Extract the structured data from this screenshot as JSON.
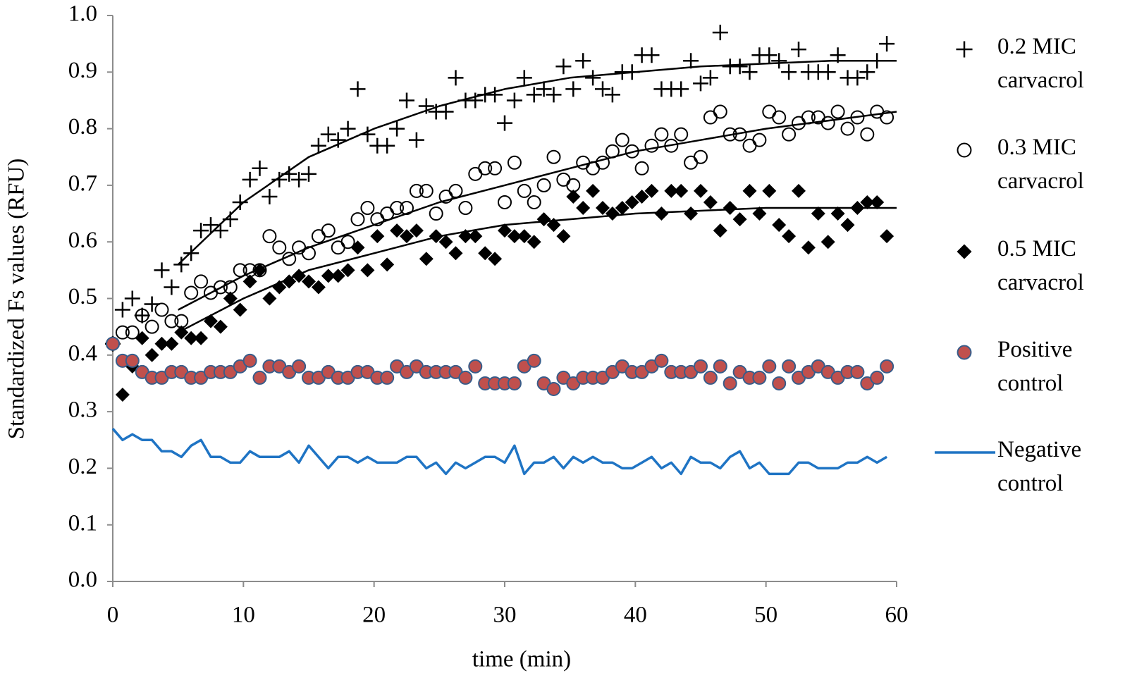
{
  "chart_data": {
    "type": "scatter",
    "xlabel": "time (min)",
    "ylabel": "Standardized Fs values (RFU)",
    "xlim": [
      0,
      60
    ],
    "ylim": [
      0,
      1
    ],
    "xticks": [
      0,
      10,
      20,
      30,
      40,
      50,
      60
    ],
    "yticks": [
      {
        "value": 0,
        "label": "0.0"
      },
      0.1,
      0.2,
      0.3,
      0.4,
      0.5,
      0.6,
      0.7,
      0.8,
      0.9,
      {
        "value": 1,
        "label": "1.0"
      }
    ],
    "legend": "right",
    "x": [
      0,
      0.75,
      1.5,
      2.25,
      3,
      3.75,
      4.5,
      5.25,
      6,
      6.75,
      7.5,
      8.25,
      9,
      9.75,
      10.5,
      11.25,
      12,
      12.75,
      13.5,
      14.25,
      15,
      15.75,
      16.5,
      17.25,
      18,
      18.75,
      19.5,
      20.25,
      21,
      21.75,
      22.5,
      23.25,
      24,
      24.75,
      25.5,
      26.25,
      27,
      27.75,
      28.5,
      29.25,
      30,
      30.75,
      31.5,
      32.25,
      33,
      33.75,
      34.5,
      35.25,
      36,
      36.75,
      37.5,
      38.25,
      39,
      39.75,
      40.5,
      41.25,
      42,
      42.75,
      43.5,
      44.25,
      45,
      45.75,
      46.5,
      47.25,
      48,
      48.75,
      49.5,
      50.25,
      51,
      51.75,
      52.5,
      53.25,
      54,
      54.75,
      55.5,
      56.25,
      57,
      57.75,
      58.5,
      59.25
    ],
    "series": [
      {
        "name": "0.2 MIC carvacrol",
        "marker": "plus",
        "color": "#000000",
        "values": [
          0.42,
          0.48,
          0.5,
          0.47,
          0.49,
          0.55,
          0.52,
          0.56,
          0.58,
          0.62,
          0.63,
          0.62,
          0.64,
          0.67,
          0.71,
          0.73,
          0.68,
          0.71,
          0.72,
          0.71,
          0.72,
          0.77,
          0.79,
          0.78,
          0.8,
          0.87,
          0.79,
          0.77,
          0.77,
          0.8,
          0.85,
          0.78,
          0.84,
          0.83,
          0.83,
          0.89,
          0.85,
          0.85,
          0.86,
          0.86,
          0.81,
          0.85,
          0.89,
          0.86,
          0.87,
          0.86,
          0.91,
          0.87,
          0.92,
          0.89,
          0.87,
          0.86,
          0.9,
          0.9,
          0.93,
          0.93,
          0.87,
          0.87,
          0.87,
          0.92,
          0.88,
          0.89,
          0.97,
          0.91,
          0.91,
          0.9,
          0.93,
          0.93,
          0.92,
          0.9,
          0.94,
          0.9,
          0.9,
          0.9,
          0.93,
          0.89,
          0.89,
          0.9,
          0.92,
          0.95
        ]
      },
      {
        "name": "0.3 MIC carvacrol",
        "marker": "open-circle",
        "color": "#000000",
        "values": [
          0.42,
          0.44,
          0.44,
          0.47,
          0.45,
          0.48,
          0.46,
          0.46,
          0.51,
          0.53,
          0.51,
          0.52,
          0.52,
          0.55,
          0.55,
          0.55,
          0.61,
          0.59,
          0.57,
          0.59,
          0.58,
          0.61,
          0.62,
          0.59,
          0.6,
          0.64,
          0.66,
          0.64,
          0.65,
          0.66,
          0.66,
          0.69,
          0.69,
          0.65,
          0.68,
          0.69,
          0.66,
          0.72,
          0.73,
          0.73,
          0.67,
          0.74,
          0.69,
          0.67,
          0.7,
          0.75,
          0.71,
          0.7,
          0.74,
          0.73,
          0.74,
          0.76,
          0.78,
          0.76,
          0.73,
          0.77,
          0.79,
          0.77,
          0.79,
          0.74,
          0.75,
          0.82,
          0.83,
          0.79,
          0.79,
          0.77,
          0.78,
          0.83,
          0.82,
          0.79,
          0.81,
          0.82,
          0.82,
          0.81,
          0.83,
          0.8,
          0.82,
          0.79,
          0.83,
          0.82
        ]
      },
      {
        "name": "0.5 MIC carvacrol",
        "marker": "diamond",
        "color": "#000000",
        "values": [
          0.42,
          0.33,
          0.38,
          0.43,
          0.4,
          0.42,
          0.42,
          0.44,
          0.43,
          0.43,
          0.46,
          0.45,
          0.5,
          0.48,
          0.53,
          0.55,
          0.5,
          0.52,
          0.53,
          0.54,
          0.53,
          0.52,
          0.54,
          0.54,
          0.55,
          0.59,
          0.55,
          0.61,
          0.56,
          0.62,
          0.61,
          0.62,
          0.57,
          0.61,
          0.6,
          0.58,
          0.61,
          0.61,
          0.58,
          0.57,
          0.62,
          0.61,
          0.61,
          0.6,
          0.64,
          0.63,
          0.61,
          0.68,
          0.66,
          0.69,
          0.66,
          0.65,
          0.66,
          0.67,
          0.68,
          0.69,
          0.65,
          0.69,
          0.69,
          0.65,
          0.69,
          0.67,
          0.62,
          0.66,
          0.64,
          0.69,
          0.65,
          0.69,
          0.63,
          0.61,
          0.69,
          0.59,
          0.65,
          0.6,
          0.65,
          0.63,
          0.66,
          0.67,
          0.67,
          0.61
        ]
      },
      {
        "name": "Positive control",
        "marker": "filled-circle",
        "color": "#c0504d",
        "edgecolor": "#385d8a",
        "values": [
          0.42,
          0.39,
          0.39,
          0.37,
          0.36,
          0.36,
          0.37,
          0.37,
          0.36,
          0.36,
          0.37,
          0.37,
          0.37,
          0.38,
          0.39,
          0.36,
          0.38,
          0.38,
          0.37,
          0.38,
          0.36,
          0.36,
          0.37,
          0.36,
          0.36,
          0.37,
          0.37,
          0.36,
          0.36,
          0.38,
          0.37,
          0.38,
          0.37,
          0.37,
          0.37,
          0.37,
          0.36,
          0.38,
          0.35,
          0.35,
          0.35,
          0.35,
          0.38,
          0.39,
          0.35,
          0.34,
          0.36,
          0.35,
          0.36,
          0.36,
          0.36,
          0.37,
          0.38,
          0.37,
          0.37,
          0.38,
          0.39,
          0.37,
          0.37,
          0.37,
          0.38,
          0.36,
          0.38,
          0.35,
          0.37,
          0.36,
          0.36,
          0.38,
          0.35,
          0.38,
          0.36,
          0.37,
          0.38,
          0.37,
          0.36,
          0.37,
          0.37,
          0.35,
          0.36,
          0.38
        ]
      },
      {
        "name": "Negative control",
        "marker": "line",
        "color": "#1f74c4",
        "values": [
          0.27,
          0.25,
          0.26,
          0.25,
          0.25,
          0.23,
          0.23,
          0.22,
          0.24,
          0.25,
          0.22,
          0.22,
          0.21,
          0.21,
          0.23,
          0.22,
          0.22,
          0.22,
          0.23,
          0.21,
          0.24,
          0.22,
          0.2,
          0.22,
          0.22,
          0.21,
          0.22,
          0.21,
          0.21,
          0.21,
          0.22,
          0.22,
          0.2,
          0.21,
          0.19,
          0.21,
          0.2,
          0.21,
          0.22,
          0.22,
          0.21,
          0.24,
          0.19,
          0.21,
          0.21,
          0.22,
          0.2,
          0.22,
          0.21,
          0.22,
          0.21,
          0.21,
          0.2,
          0.2,
          0.21,
          0.22,
          0.2,
          0.21,
          0.19,
          0.22,
          0.21,
          0.21,
          0.2,
          0.22,
          0.23,
          0.2,
          0.21,
          0.19,
          0.19,
          0.19,
          0.21,
          0.21,
          0.2,
          0.2,
          0.2,
          0.21,
          0.21,
          0.22,
          0.21,
          0.22
        ]
      }
    ],
    "trendlines": [
      {
        "color": "#000000",
        "x": [
          5,
          10,
          15,
          20,
          25,
          30,
          35,
          40,
          45,
          50,
          55,
          60
        ],
        "values": [
          0.56,
          0.67,
          0.75,
          0.8,
          0.84,
          0.87,
          0.89,
          0.9,
          0.91,
          0.915,
          0.92,
          0.92
        ]
      },
      {
        "color": "#000000",
        "x": [
          5,
          10,
          15,
          20,
          25,
          30,
          35,
          40,
          45,
          50,
          55,
          60
        ],
        "values": [
          0.48,
          0.54,
          0.59,
          0.63,
          0.67,
          0.7,
          0.73,
          0.76,
          0.78,
          0.8,
          0.815,
          0.83
        ]
      },
      {
        "color": "#000000",
        "x": [
          5,
          10,
          15,
          20,
          25,
          30,
          35,
          40,
          45,
          50,
          55,
          60
        ],
        "values": [
          0.44,
          0.5,
          0.55,
          0.58,
          0.61,
          0.63,
          0.64,
          0.65,
          0.655,
          0.66,
          0.66,
          0.66
        ]
      }
    ]
  }
}
